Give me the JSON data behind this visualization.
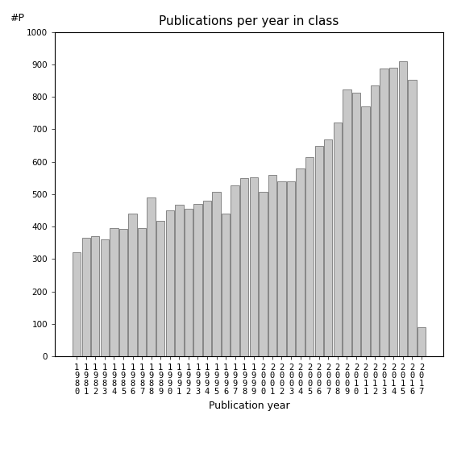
{
  "title": "Publications per year in class",
  "xlabel": "Publication year",
  "ylabel": "#P",
  "ylim": [
    0,
    1000
  ],
  "yticks": [
    0,
    100,
    200,
    300,
    400,
    500,
    600,
    700,
    800,
    900,
    1000
  ],
  "bar_color": "#c8c8c8",
  "bar_edgecolor": "#404040",
  "years": [
    1980,
    1981,
    1982,
    1983,
    1984,
    1985,
    1986,
    1987,
    1988,
    1989,
    1990,
    1991,
    1992,
    1993,
    1994,
    1995,
    1996,
    1997,
    1998,
    1999,
    2000,
    2001,
    2002,
    2003,
    2004,
    2005,
    2006,
    2007,
    2008,
    2009,
    2010,
    2011,
    2012,
    2013,
    2014,
    2015,
    2016,
    2017
  ],
  "values": [
    320,
    365,
    370,
    362,
    395,
    392,
    440,
    395,
    490,
    418,
    450,
    467,
    455,
    470,
    480,
    507,
    440,
    527,
    550,
    553,
    507,
    560,
    540,
    540,
    580,
    615,
    650,
    668,
    720,
    822,
    813,
    770,
    835,
    887,
    890,
    910,
    852,
    90
  ],
  "background_color": "#ffffff",
  "figsize": [
    5.67,
    5.67
  ],
  "dpi": 100,
  "tick_labelsize": 7.5,
  "title_fontsize": 11,
  "xlabel_fontsize": 9,
  "ylabel_annotation_fontsize": 9
}
